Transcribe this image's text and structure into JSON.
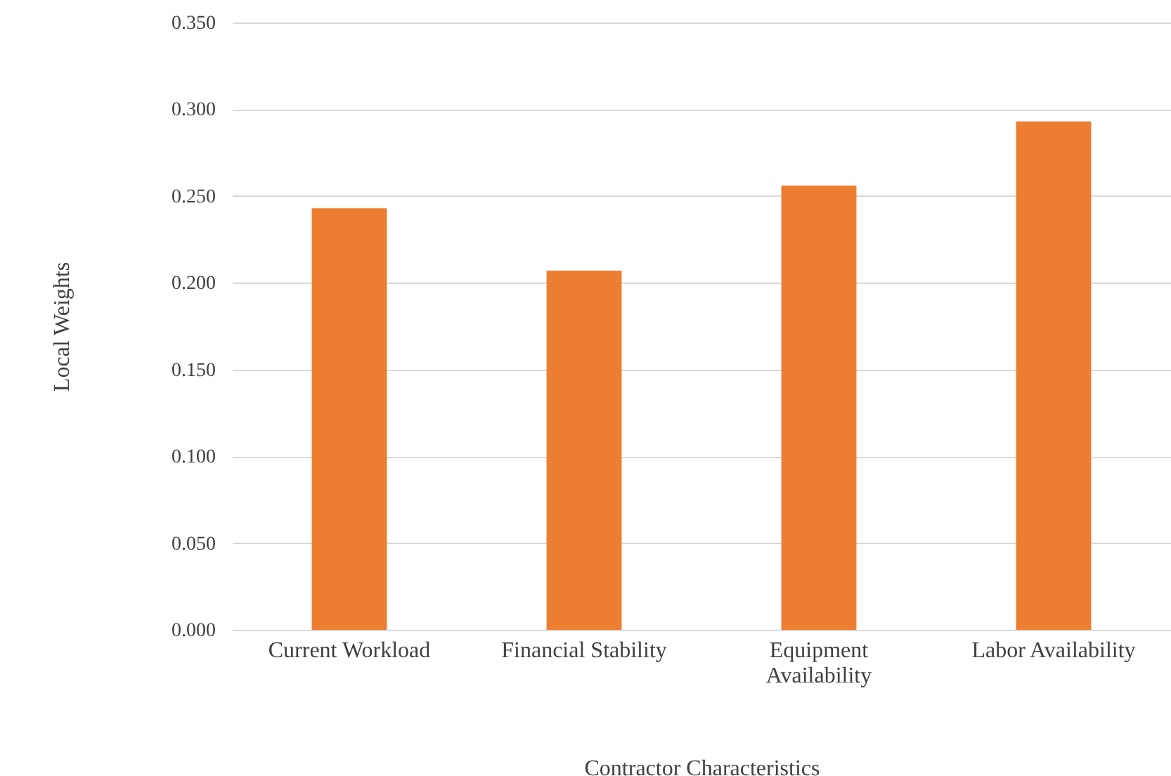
{
  "chart_data": {
    "type": "bar",
    "xlabel": "Contractor Characteristics",
    "ylabel": "Local Weights",
    "categories": [
      "Current Workload",
      "Financial Stability",
      "Equipment Availability",
      "Labor Availability"
    ],
    "values": [
      0.243,
      0.207,
      0.256,
      0.293
    ],
    "color": "#ed7d31",
    "ylim": [
      0,
      0.35
    ],
    "yticks": [
      {
        "value": 0,
        "label": "0.000"
      },
      {
        "value": 0.05,
        "label": "0.050"
      },
      {
        "value": 0.1,
        "label": "0.100"
      },
      {
        "value": 0.15,
        "label": "0.150"
      },
      {
        "value": 0.2,
        "label": "0.200"
      },
      {
        "value": 0.25,
        "label": "0.250"
      },
      {
        "value": 0.3,
        "label": "0.300"
      },
      {
        "value": 0.35,
        "label": "0.350"
      }
    ],
    "grid": "y"
  }
}
